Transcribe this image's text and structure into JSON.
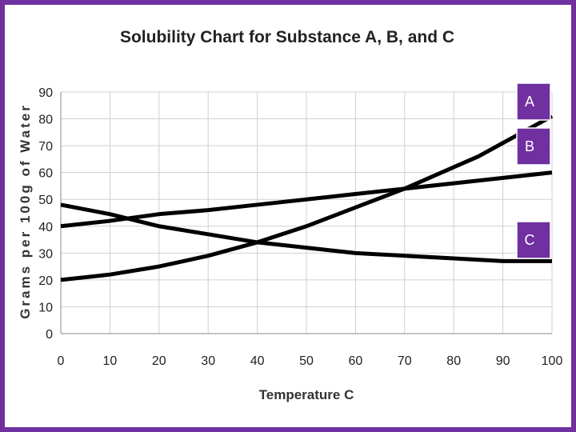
{
  "chart_data": {
    "type": "line",
    "title": "Solubility Chart for Substance A, B, and C",
    "xlabel": "Temperature C",
    "ylabel": "Grams per 100g of Water",
    "xlim": [
      0,
      100
    ],
    "ylim": [
      0,
      90
    ],
    "x_ticks": [
      0,
      10,
      20,
      30,
      40,
      50,
      60,
      70,
      80,
      90,
      100
    ],
    "y_ticks": [
      0,
      10,
      20,
      30,
      40,
      50,
      60,
      70,
      80,
      90
    ],
    "grid": true,
    "series": [
      {
        "name": "A",
        "x": [
          0,
          10,
          20,
          25,
          30,
          40,
          50,
          60,
          70,
          80,
          85,
          90,
          100
        ],
        "y": [
          20,
          22,
          25,
          27,
          29,
          34,
          40,
          47,
          54,
          62,
          66,
          71,
          81
        ]
      },
      {
        "name": "B",
        "x": [
          0,
          10,
          20,
          30,
          40,
          50,
          60,
          70,
          80,
          90,
          100
        ],
        "y": [
          40,
          42,
          44.5,
          46,
          48,
          50,
          52,
          54,
          56,
          58,
          60
        ]
      },
      {
        "name": "C",
        "x": [
          0,
          10,
          20,
          30,
          40,
          50,
          60,
          70,
          80,
          90,
          100
        ],
        "y": [
          48,
          44.5,
          40,
          37,
          34,
          32,
          30,
          29,
          28,
          27,
          27
        ]
      }
    ]
  },
  "colors": {
    "frame": "#7030a0",
    "badge": "#7030a0",
    "line": "#000000"
  }
}
